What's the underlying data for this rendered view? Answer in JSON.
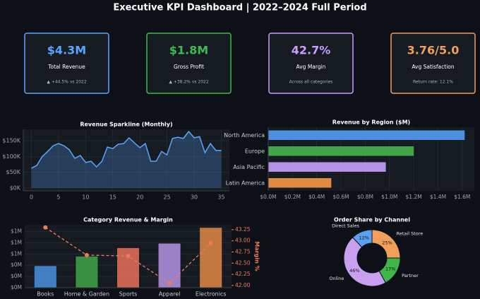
{
  "title": "Executive KPI Dashboard  |  2022–2024 Full Period",
  "kpis": [
    {
      "value": "$4.3M",
      "label": "Total Revenue",
      "note": "▲ +44.5% vs 2022",
      "color": "#58a6ff"
    },
    {
      "value": "$1.8M",
      "label": "Gross Profit",
      "note": "▲ +38.2% vs 2022",
      "color": "#3fb950"
    },
    {
      "value": "42.7%",
      "label": "Avg Margin",
      "note": "Across all categories",
      "color": "#c9a0ff"
    },
    {
      "value": "3.76/5.0",
      "label": "Avg Satisfaction",
      "note": "Return rate: 12.1%",
      "color": "#f0a05a"
    }
  ],
  "chart_data": [
    {
      "type": "line",
      "title": "Revenue Sparkline (Monthly)",
      "fill": true,
      "grid": true,
      "color": "#58a6ff",
      "x": [
        0,
        1,
        2,
        3,
        4,
        5,
        6,
        7,
        8,
        9,
        10,
        11,
        12,
        13,
        14,
        15,
        16,
        17,
        18,
        19,
        20,
        21,
        22,
        23,
        24,
        25,
        26,
        27,
        28,
        29,
        30,
        31,
        32,
        33,
        34,
        35
      ],
      "values": [
        63000,
        72000,
        100000,
        116000,
        134000,
        141000,
        134000,
        121000,
        94000,
        103000,
        81000,
        85000,
        67000,
        85000,
        130000,
        125000,
        139000,
        141000,
        159000,
        143000,
        128000,
        141000,
        85000,
        85000,
        116000,
        105000,
        157000,
        161000,
        157000,
        179000,
        159000,
        163000,
        112000,
        141000,
        119000,
        119000
      ],
      "xlim": [
        -1.5,
        36.5
      ],
      "xticks": [
        0,
        5,
        10,
        15,
        20,
        25,
        30,
        35
      ],
      "ylim": [
        -9000,
        186000
      ],
      "yticks": [
        {
          "value": 0,
          "label": "$0K"
        },
        {
          "value": 50000,
          "label": "$50K"
        },
        {
          "value": 100000,
          "label": "$100K"
        },
        {
          "value": 150000,
          "label": "$150K"
        }
      ]
    },
    {
      "type": "barh",
      "title": "Revenue by Region ($M)",
      "grid": true,
      "categories": [
        "North America",
        "Europe",
        "Asia Pacific",
        "Latin America"
      ],
      "values": [
        1620000,
        1200000,
        970000,
        520000
      ],
      "colors": [
        "#4a8fe0",
        "#3fa548",
        "#b493e6",
        "#e08a45"
      ],
      "xlim": [
        0,
        1700000
      ],
      "xticks": [
        {
          "value": 0,
          "label": "$0.0M"
        },
        {
          "value": 200000,
          "label": "$0.2M"
        },
        {
          "value": 400000,
          "label": "$0.4M"
        },
        {
          "value": 600000,
          "label": "$0.6M"
        },
        {
          "value": 800000,
          "label": "$0.8M"
        },
        {
          "value": 1000000,
          "label": "$1.0M"
        },
        {
          "value": 1200000,
          "label": "$1.2M"
        },
        {
          "value": 1400000,
          "label": "$1.4M"
        },
        {
          "value": 1600000,
          "label": "$1.6M"
        }
      ]
    },
    {
      "type": "bar",
      "title": "Category Revenue & Margin",
      "grid": true,
      "y2label": "Margin %",
      "categories": [
        "Books",
        "Home & Garden",
        "Sports",
        "Apparel",
        "Electronics"
      ],
      "series": [
        {
          "colors": [
            "#4a8fe0",
            "#3fa548",
            "#e8705a",
            "#b493e6",
            "#e08a45"
          ],
          "values": [
            390000,
            560000,
            710000,
            790000,
            1070000
          ]
        },
        {
          "type": "line",
          "axis": "y2",
          "color": "#f07a5f",
          "values": [
            43.3,
            42.68,
            42.66,
            42.05,
            42.95
          ]
        }
      ],
      "ylim": [
        0,
        1120000
      ],
      "yticks": [
        {
          "value": 0,
          "label": "$0M"
        },
        {
          "value": 200000,
          "label": "$0M"
        },
        {
          "value": 400000,
          "label": "$0M"
        },
        {
          "value": 600000,
          "label": "$1M"
        },
        {
          "value": 800000,
          "label": "$1M"
        },
        {
          "value": 1000000,
          "label": "$1M"
        }
      ],
      "y2lim": [
        41.95,
        43.36
      ],
      "y2ticks": [
        {
          "value": 42,
          "label": "42.00"
        },
        {
          "value": 42.25,
          "label": "42.25"
        },
        {
          "value": 42.5,
          "label": "42.50"
        },
        {
          "value": 42.75,
          "label": "42.75"
        },
        {
          "value": 43,
          "label": "43.00"
        },
        {
          "value": 43.25,
          "label": "43.25"
        }
      ]
    },
    {
      "type": "pie",
      "title": "Order Share by Channel",
      "donut": true,
      "categories": [
        "Retail Store",
        "Partner",
        "Online",
        "Direct Sales"
      ],
      "values": [
        25,
        17,
        46,
        12
      ],
      "value_labels": [
        "25%",
        "17%",
        "46%",
        "12%"
      ],
      "colors": [
        "#f0a05a",
        "#3fb54a",
        "#c9a0f0",
        "#5aa0f0"
      ]
    }
  ]
}
